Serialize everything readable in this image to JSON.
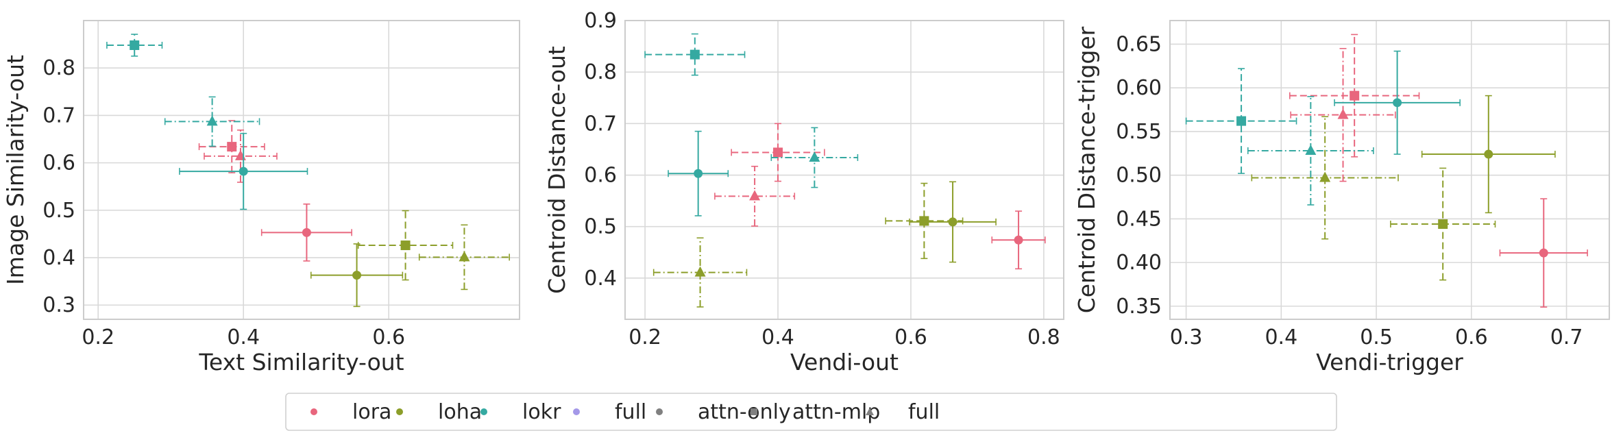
{
  "colors": {
    "lora": "#e8667d",
    "loha": "#8c9e2a",
    "lokr": "#35a9a1",
    "full": "#a498e8",
    "marker_neutral": "#808080",
    "grid": "#d9d9d9",
    "axes_edge": "#cccccc"
  },
  "legend": {
    "placement": "bottom-center",
    "entries": [
      {
        "label": "lora",
        "marker": "circle",
        "color_key": "lora"
      },
      {
        "label": "loha",
        "marker": "circle",
        "color_key": "loha"
      },
      {
        "label": "lokr",
        "marker": "circle",
        "color_key": "lokr"
      },
      {
        "label": "full",
        "marker": "circle",
        "color_key": "full"
      },
      {
        "label": "attn-only",
        "marker": "circle",
        "color_key": "marker_neutral"
      },
      {
        "label": "attn-mlp",
        "marker": "square",
        "color_key": "marker_neutral"
      },
      {
        "label": "full",
        "marker": "triangle",
        "color_key": "marker_neutral"
      }
    ]
  },
  "chart_data": [
    {
      "type": "scatter",
      "title": "",
      "xlabel": "Text Similarity-out",
      "ylabel": "Image Similarity-out",
      "xlim": [
        0.18,
        0.78
      ],
      "ylim": [
        0.27,
        0.9
      ],
      "xticks": [
        0.2,
        0.4,
        0.6
      ],
      "yticks": [
        0.3,
        0.4,
        0.5,
        0.6,
        0.7,
        0.8
      ],
      "xtick_labels": [
        "0.2",
        "0.4",
        "0.6"
      ],
      "ytick_labels": [
        "0.3",
        "0.4",
        "0.5",
        "0.6",
        "0.7",
        "0.8"
      ],
      "grid": true,
      "points": [
        {
          "method": "lora",
          "scope": "attn-only",
          "marker": "circle",
          "linestyle": "solid",
          "x": 0.487,
          "xerr": 0.062,
          "y": 0.453,
          "yerr": 0.06
        },
        {
          "method": "lora",
          "scope": "attn-mlp",
          "marker": "square",
          "linestyle": "dashed",
          "x": 0.384,
          "xerr": 0.045,
          "y": 0.634,
          "yerr": 0.055
        },
        {
          "method": "lora",
          "scope": "full",
          "marker": "triangle",
          "linestyle": "dashdot",
          "x": 0.396,
          "xerr": 0.05,
          "y": 0.614,
          "yerr": 0.055
        },
        {
          "method": "loha",
          "scope": "attn-only",
          "marker": "circle",
          "linestyle": "solid",
          "x": 0.556,
          "xerr": 0.063,
          "y": 0.363,
          "yerr": 0.066
        },
        {
          "method": "loha",
          "scope": "attn-mlp",
          "marker": "square",
          "linestyle": "dashed",
          "x": 0.623,
          "xerr": 0.065,
          "y": 0.426,
          "yerr": 0.073
        },
        {
          "method": "loha",
          "scope": "full",
          "marker": "triangle",
          "linestyle": "dashdot",
          "x": 0.704,
          "xerr": 0.062,
          "y": 0.401,
          "yerr": 0.068
        },
        {
          "method": "lokr",
          "scope": "attn-only",
          "marker": "circle",
          "linestyle": "solid",
          "x": 0.4,
          "xerr": 0.088,
          "y": 0.582,
          "yerr": 0.08
        },
        {
          "method": "lokr",
          "scope": "attn-mlp",
          "marker": "square",
          "linestyle": "dashed",
          "x": 0.25,
          "xerr": 0.038,
          "y": 0.848,
          "yerr": 0.023
        },
        {
          "method": "lokr",
          "scope": "full",
          "marker": "triangle",
          "linestyle": "dashdot",
          "x": 0.357,
          "xerr": 0.065,
          "y": 0.687,
          "yerr": 0.052
        }
      ]
    },
    {
      "type": "scatter",
      "title": "",
      "xlabel": "Vendi-out",
      "ylabel": "Centroid Distance-out",
      "xlim": [
        0.17,
        0.83
      ],
      "ylim": [
        0.32,
        0.9
      ],
      "xticks": [
        0.2,
        0.4,
        0.6,
        0.8
      ],
      "yticks": [
        0.4,
        0.5,
        0.6,
        0.7,
        0.8,
        0.9
      ],
      "xtick_labels": [
        "0.2",
        "0.4",
        "0.6",
        "0.8"
      ],
      "ytick_labels": [
        "0.4",
        "0.5",
        "0.6",
        "0.7",
        "0.8",
        "0.9"
      ],
      "grid": true,
      "points": [
        {
          "method": "lora",
          "scope": "attn-only",
          "marker": "circle",
          "linestyle": "solid",
          "x": 0.762,
          "xerr": 0.04,
          "y": 0.474,
          "yerr": 0.056
        },
        {
          "method": "lora",
          "scope": "attn-mlp",
          "marker": "square",
          "linestyle": "dashed",
          "x": 0.4,
          "xerr": 0.07,
          "y": 0.644,
          "yerr": 0.056
        },
        {
          "method": "lora",
          "scope": "full",
          "marker": "triangle",
          "linestyle": "dashdot",
          "x": 0.365,
          "xerr": 0.06,
          "y": 0.559,
          "yerr": 0.058
        },
        {
          "method": "loha",
          "scope": "attn-only",
          "marker": "circle",
          "linestyle": "solid",
          "x": 0.663,
          "xerr": 0.065,
          "y": 0.509,
          "yerr": 0.078
        },
        {
          "method": "loha",
          "scope": "attn-mlp",
          "marker": "square",
          "linestyle": "dashed",
          "x": 0.62,
          "xerr": 0.058,
          "y": 0.511,
          "yerr": 0.073
        },
        {
          "method": "loha",
          "scope": "full",
          "marker": "triangle",
          "linestyle": "dashdot",
          "x": 0.283,
          "xerr": 0.07,
          "y": 0.411,
          "yerr": 0.067
        },
        {
          "method": "lokr",
          "scope": "attn-only",
          "marker": "circle",
          "linestyle": "solid",
          "x": 0.28,
          "xerr": 0.045,
          "y": 0.603,
          "yerr": 0.082
        },
        {
          "method": "lokr",
          "scope": "attn-mlp",
          "marker": "square",
          "linestyle": "dashed",
          "x": 0.275,
          "xerr": 0.075,
          "y": 0.834,
          "yerr": 0.04
        },
        {
          "method": "lokr",
          "scope": "full",
          "marker": "triangle",
          "linestyle": "dashdot",
          "x": 0.455,
          "xerr": 0.065,
          "y": 0.634,
          "yerr": 0.058
        }
      ]
    },
    {
      "type": "scatter",
      "title": "",
      "xlabel": "Vendi-trigger",
      "ylabel": "Centroid Distance-trigger",
      "xlim": [
        0.283,
        0.745
      ],
      "ylim": [
        0.335,
        0.677
      ],
      "xticks": [
        0.3,
        0.4,
        0.5,
        0.6,
        0.7
      ],
      "yticks": [
        0.35,
        0.4,
        0.45,
        0.5,
        0.55,
        0.6,
        0.65
      ],
      "xtick_labels": [
        "0.3",
        "0.4",
        "0.5",
        "0.6",
        "0.7"
      ],
      "ytick_labels": [
        "0.35",
        "0.40",
        "0.45",
        "0.50",
        "0.55",
        "0.60",
        "0.65"
      ],
      "grid": true,
      "points": [
        {
          "method": "lora",
          "scope": "attn-only",
          "marker": "circle",
          "linestyle": "solid",
          "x": 0.676,
          "xerr": 0.046,
          "y": 0.411,
          "yerr": 0.062
        },
        {
          "method": "lora",
          "scope": "attn-mlp",
          "marker": "square",
          "linestyle": "dashed",
          "x": 0.477,
          "xerr": 0.068,
          "y": 0.591,
          "yerr": 0.07
        },
        {
          "method": "lora",
          "scope": "full",
          "marker": "triangle",
          "linestyle": "dashdot",
          "x": 0.465,
          "xerr": 0.055,
          "y": 0.569,
          "yerr": 0.076
        },
        {
          "method": "loha",
          "scope": "attn-only",
          "marker": "circle",
          "linestyle": "solid",
          "x": 0.618,
          "xerr": 0.07,
          "y": 0.524,
          "yerr": 0.067
        },
        {
          "method": "loha",
          "scope": "attn-mlp",
          "marker": "square",
          "linestyle": "dashed",
          "x": 0.57,
          "xerr": 0.055,
          "y": 0.444,
          "yerr": 0.064
        },
        {
          "method": "loha",
          "scope": "full",
          "marker": "triangle",
          "linestyle": "dashdot",
          "x": 0.446,
          "xerr": 0.077,
          "y": 0.497,
          "yerr": 0.07
        },
        {
          "method": "lokr",
          "scope": "attn-only",
          "marker": "circle",
          "linestyle": "solid",
          "x": 0.522,
          "xerr": 0.066,
          "y": 0.583,
          "yerr": 0.059
        },
        {
          "method": "lokr",
          "scope": "attn-mlp",
          "marker": "square",
          "linestyle": "dashed",
          "x": 0.358,
          "xerr": 0.058,
          "y": 0.562,
          "yerr": 0.06
        },
        {
          "method": "lokr",
          "scope": "full",
          "marker": "triangle",
          "linestyle": "dashdot",
          "x": 0.431,
          "xerr": 0.066,
          "y": 0.528,
          "yerr": 0.062
        }
      ]
    }
  ]
}
